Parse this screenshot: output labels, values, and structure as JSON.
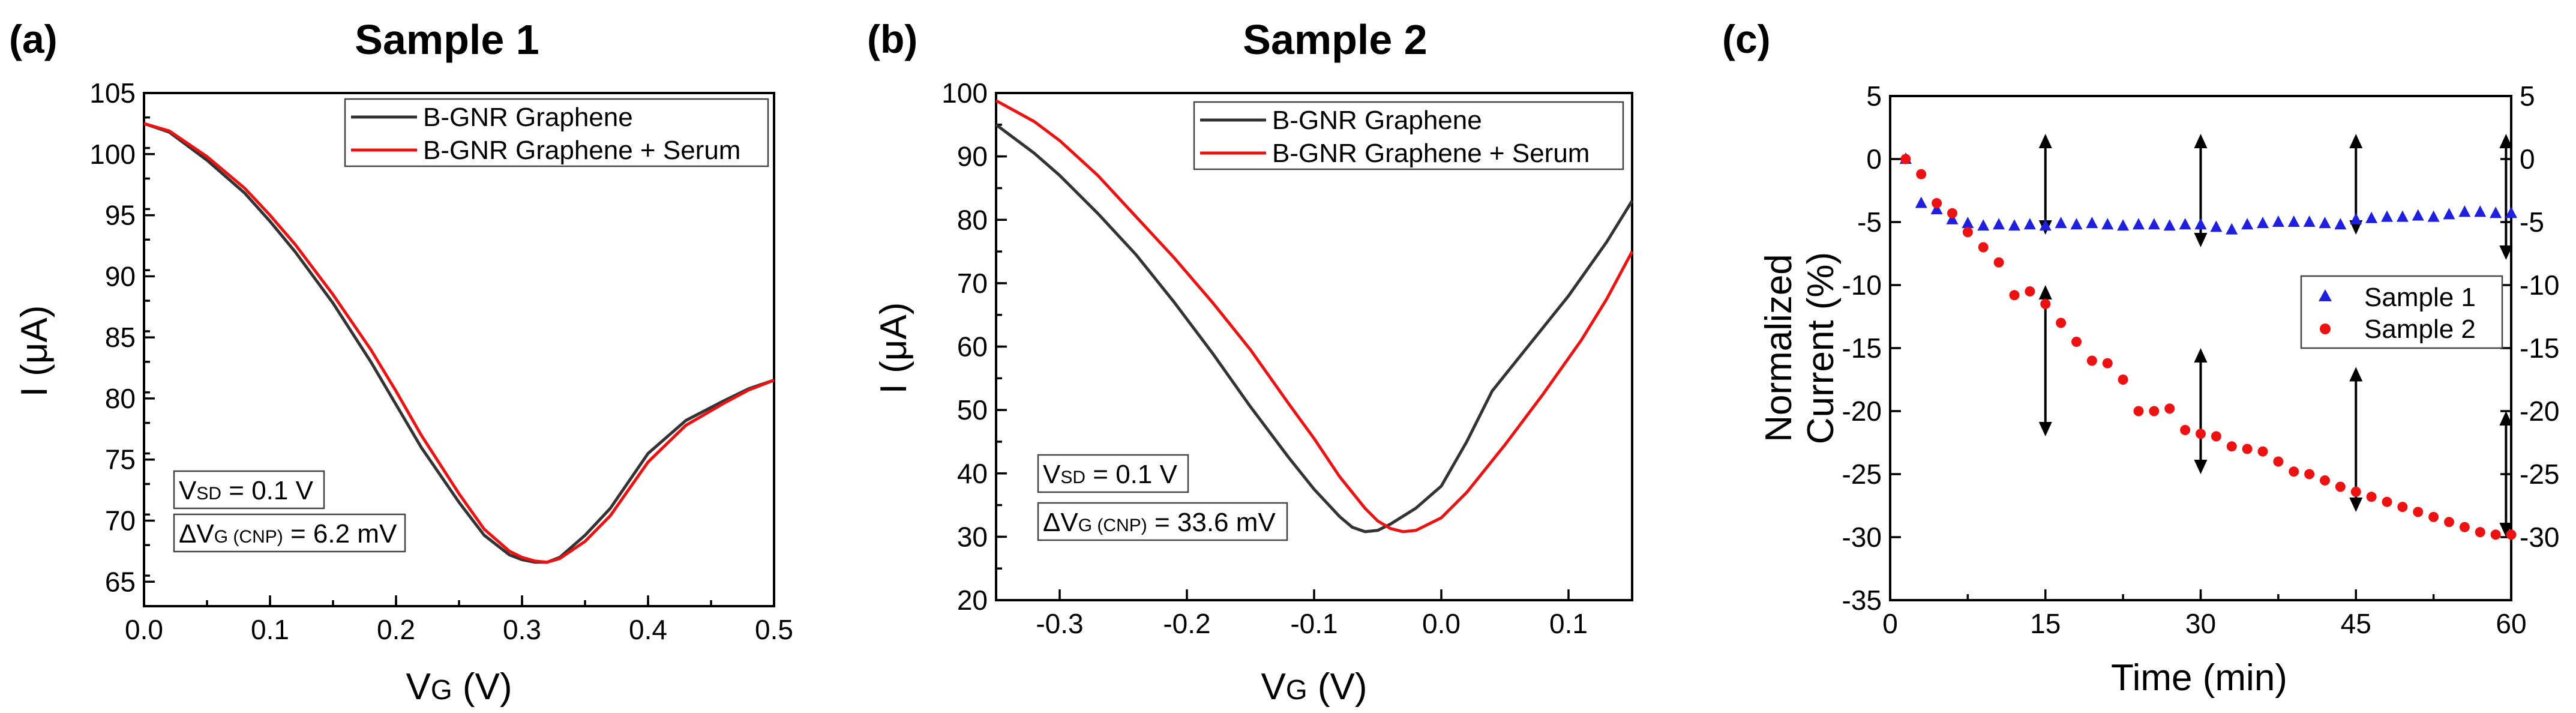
{
  "chart_data": [
    {
      "panel_label": "(a)",
      "title": "Sample 1",
      "type": "line",
      "xlabel_main": "V",
      "xlabel_sub": "G",
      "xlabel_unit": " (V)",
      "ylabel": "I (μA)",
      "xlim": [
        0.0,
        0.5
      ],
      "ylim": [
        63,
        105
      ],
      "xticks": [
        "0.0",
        "0.1",
        "0.2",
        "0.3",
        "0.4",
        "0.5"
      ],
      "yticks": [
        "65",
        "70",
        "75",
        "80",
        "85",
        "90",
        "95",
        "100",
        "105"
      ],
      "series": [
        {
          "name": "B-GNR Graphene",
          "color": "#333333",
          "x": [
            0,
            0.02,
            0.05,
            0.08,
            0.1,
            0.12,
            0.15,
            0.18,
            0.2,
            0.22,
            0.25,
            0.27,
            0.29,
            0.3,
            0.31,
            0.32,
            0.33,
            0.35,
            0.37,
            0.4,
            0.43,
            0.46,
            0.48,
            0.5
          ],
          "y": [
            102.5,
            101.8,
            99.5,
            96.8,
            94.5,
            92,
            87.8,
            83,
            79.5,
            76,
            71.5,
            68.8,
            67.2,
            66.8,
            66.6,
            66.6,
            67,
            68.8,
            71,
            75.5,
            78.2,
            79.8,
            80.8,
            81.5
          ]
        },
        {
          "name": "B-GNR Graphene + Serum",
          "color": "#ee1111",
          "x": [
            0,
            0.02,
            0.05,
            0.08,
            0.1,
            0.12,
            0.15,
            0.18,
            0.2,
            0.22,
            0.25,
            0.27,
            0.29,
            0.3,
            0.31,
            0.32,
            0.33,
            0.35,
            0.37,
            0.4,
            0.43,
            0.46,
            0.48,
            0.5
          ],
          "y": [
            102.5,
            101.9,
            99.8,
            97.2,
            95,
            92.6,
            88.5,
            84,
            80.6,
            77,
            72.2,
            69.3,
            67.5,
            67,
            66.7,
            66.6,
            66.9,
            68.3,
            70.4,
            74.8,
            77.8,
            79.6,
            80.7,
            81.5
          ]
        }
      ],
      "annotations": {
        "vsd_main": "V",
        "vsd_sub": "SD",
        "vsd_rest": " = 0.1 V",
        "dv_main": "ΔV",
        "dv_sub": "G (CNP)",
        "dv_rest": " = 6.2 mV"
      }
    },
    {
      "panel_label": "(b)",
      "title": "Sample 2",
      "type": "line",
      "xlabel_main": "V",
      "xlabel_sub": "G",
      "xlabel_unit": " (V)",
      "ylabel": "I (μA)",
      "xlim": [
        -0.35,
        0.15
      ],
      "ylim": [
        20,
        100
      ],
      "xticks": [
        "-0.3",
        "-0.2",
        "-0.1",
        "0.0",
        "0.1"
      ],
      "xtick_values": [
        -0.3,
        -0.2,
        -0.1,
        0.0,
        0.1
      ],
      "yticks": [
        "20",
        "30",
        "40",
        "50",
        "60",
        "70",
        "80",
        "90",
        "100"
      ],
      "series": [
        {
          "name": "B-GNR Graphene",
          "color": "#333333",
          "x": [
            -0.35,
            -0.32,
            -0.3,
            -0.27,
            -0.24,
            -0.21,
            -0.18,
            -0.15,
            -0.12,
            -0.1,
            -0.08,
            -0.07,
            -0.06,
            -0.05,
            -0.04,
            -0.02,
            0.0,
            0.02,
            0.04,
            0.07,
            0.1,
            0.13,
            0.15
          ],
          "y": [
            95,
            90.5,
            87,
            81,
            74.5,
            67,
            59,
            50.5,
            42.5,
            37.5,
            33.2,
            31.5,
            30.8,
            31,
            32,
            34.5,
            38,
            45,
            53,
            60.5,
            68,
            76.5,
            83
          ]
        },
        {
          "name": "B-GNR Graphene + Serum",
          "color": "#ee1111",
          "x": [
            -0.35,
            -0.32,
            -0.3,
            -0.27,
            -0.24,
            -0.21,
            -0.18,
            -0.15,
            -0.12,
            -0.1,
            -0.08,
            -0.06,
            -0.05,
            -0.04,
            -0.03,
            -0.02,
            0.0,
            0.02,
            0.05,
            0.08,
            0.11,
            0.13,
            0.15
          ],
          "y": [
            98.8,
            95.5,
            92.5,
            87,
            80.5,
            74,
            67,
            59.5,
            51,
            45.5,
            39.5,
            34.5,
            32.5,
            31.3,
            30.8,
            31,
            33,
            37,
            44.5,
            52.5,
            61,
            67.5,
            75
          ]
        }
      ],
      "annotations": {
        "vsd_main": "V",
        "vsd_sub": "SD",
        "vsd_rest": " = 0.1 V",
        "dv_main": "ΔV",
        "dv_sub": "G (CNP)",
        "dv_rest": " = 33.6 mV"
      }
    },
    {
      "panel_label": "(c)",
      "type": "scatter",
      "xlabel": "Time (min)",
      "ylabel_line1": "Normalized",
      "ylabel_line2": "Current (%)",
      "xlim": [
        0,
        60
      ],
      "ylim": [
        -35,
        5
      ],
      "xticks": [
        "0",
        "15",
        "30",
        "45",
        "60"
      ],
      "yticks": [
        "-35",
        "-30",
        "-25",
        "-20",
        "-15",
        "-10",
        "-5",
        "0",
        "5"
      ],
      "yticks_right": [
        "-30",
        "-25",
        "-20",
        "-15",
        "-10",
        "-5",
        "0",
        "5"
      ],
      "series": [
        {
          "name": "Sample 1",
          "color": "#1f1fdf",
          "marker": "triangle",
          "x": [
            1.5,
            3,
            4.5,
            6,
            7.5,
            9,
            10.5,
            12,
            13.5,
            15,
            16.5,
            18,
            19.5,
            21,
            22.5,
            24,
            25.5,
            27,
            28.5,
            30,
            31.5,
            33,
            34.5,
            36,
            37.5,
            39,
            40.5,
            42,
            43.5,
            45,
            46.5,
            48,
            49.5,
            51,
            52.5,
            54,
            55.5,
            57,
            58.5,
            60
          ],
          "y": [
            0,
            -3.5,
            -4,
            -4.8,
            -5.1,
            -5.3,
            -5.2,
            -5.3,
            -5.2,
            -5.3,
            -5.1,
            -5.2,
            -5.1,
            -5.2,
            -5.3,
            -5.2,
            -5.2,
            -5.3,
            -5.2,
            -5.2,
            -5.4,
            -5.6,
            -5.2,
            -5.1,
            -5,
            -5,
            -5,
            -5.1,
            -5.2,
            -4.8,
            -4.7,
            -4.6,
            -4.6,
            -4.5,
            -4.6,
            -4.4,
            -4.2,
            -4.2,
            -4.3,
            -4.3
          ]
        },
        {
          "name": "Sample 2",
          "color": "#ee1111",
          "marker": "circle",
          "x": [
            1.5,
            3,
            4.5,
            6,
            7.5,
            9,
            10.5,
            12,
            13.5,
            15,
            16.5,
            18,
            19.5,
            21,
            22.5,
            24,
            25.5,
            27,
            28.5,
            30,
            31.5,
            33,
            34.5,
            36,
            37.5,
            39,
            40.5,
            42,
            43.5,
            45,
            46.5,
            48,
            49.5,
            51,
            52.5,
            54,
            55.5,
            57,
            58.5,
            60
          ],
          "y": [
            0,
            -1.2,
            -3.5,
            -4.3,
            -5.8,
            -7,
            -8.2,
            -10.8,
            -10.5,
            -11.5,
            -13,
            -14.5,
            -16,
            -16.2,
            -17.5,
            -20,
            -20,
            -19.8,
            -21.5,
            -21.8,
            -22,
            -22.8,
            -23,
            -23.2,
            -24,
            -24.8,
            -25,
            -25.5,
            -26,
            -26.4,
            -26.8,
            -27.2,
            -27.6,
            -28,
            -28.4,
            -28.8,
            -29.2,
            -29.6,
            -29.8,
            -29.8
          ]
        }
      ],
      "arrows": [
        {
          "x": 15,
          "y1": 2,
          "y2": -6
        },
        {
          "x": 30,
          "y1": 2,
          "y2": -7
        },
        {
          "x": 45,
          "y1": 2,
          "y2": -6
        },
        {
          "x": 59.5,
          "y1": 2,
          "y2": -8
        },
        {
          "x": 15,
          "y1": -10,
          "y2": -22
        },
        {
          "x": 30,
          "y1": -15,
          "y2": -25
        },
        {
          "x": 45,
          "y1": -16.5,
          "y2": -28
        },
        {
          "x": 59.5,
          "y1": -20,
          "y2": -30
        }
      ]
    }
  ]
}
